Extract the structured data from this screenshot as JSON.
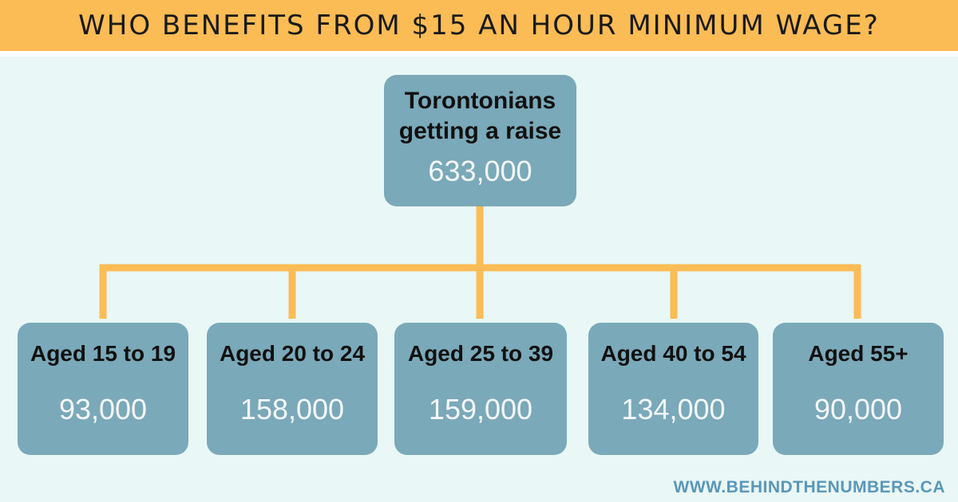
{
  "header": {
    "title": "WHO BENEFITS FROM $15 AN HOUR MINIMUM WAGE?"
  },
  "root": {
    "label_line1": "Torontonians",
    "label_line2": "getting a raise",
    "value": "633,000"
  },
  "children": [
    {
      "label": "Aged 15 to 19",
      "value": "93,000"
    },
    {
      "label": "Aged 20 to 24",
      "value": "158,000"
    },
    {
      "label": "Aged 25 to 39",
      "value": "159,000"
    },
    {
      "label": "Aged 40 to 54",
      "value": "134,000"
    },
    {
      "label": "Aged 55+",
      "value": "90,000"
    }
  ],
  "footer": {
    "website": "WWW.BEHINDTHENUMBERS.CA"
  },
  "colors": {
    "title_bar": "#fbbc55",
    "background": "#e9f7f6",
    "node_fill": "#7aa9b9",
    "connector": "#fbbc55",
    "value_text": "#f4f8fa",
    "footer_text": "#5a97b8"
  }
}
